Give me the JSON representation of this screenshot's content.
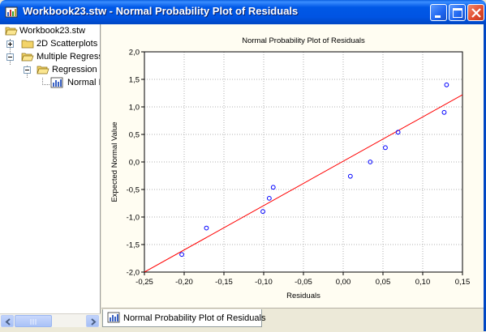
{
  "window": {
    "title": "Workbook23.stw - Normal Probability Plot of Residuals"
  },
  "tree": {
    "root": "Workbook23.stw",
    "items": [
      {
        "label": "2D Scatterplots",
        "expander": "+"
      },
      {
        "label": "Multiple Regress",
        "expander": "-"
      },
      {
        "label": "Regression",
        "expander": "-"
      },
      {
        "label": "Normal I",
        "expander": ""
      }
    ]
  },
  "tab": {
    "label": "Normal Probability Plot of Residuals"
  },
  "colors": {
    "point": "#0000ff",
    "line": "#ff0000",
    "grid": "#b0b0b0"
  },
  "chart_data": {
    "type": "scatter",
    "title": "Normal Probability Plot of Residuals",
    "xlabel": "Residuals",
    "ylabel": "Expected Normal Value",
    "xlim": [
      -0.25,
      0.15
    ],
    "ylim": [
      -2.0,
      2.0
    ],
    "x_ticks": [
      "-0,25",
      "-0,20",
      "-0,15",
      "-0,10",
      "-0,05",
      "0,00",
      "0,05",
      "0,10",
      "0,15"
    ],
    "y_ticks": [
      "-2,0",
      "-1,5",
      "-1,0",
      "-0,5",
      "0,0",
      "0,5",
      "1,0",
      "1,5",
      "2,0"
    ],
    "grid": true,
    "points": [
      {
        "x": -0.203,
        "y": -1.68
      },
      {
        "x": -0.172,
        "y": -1.2
      },
      {
        "x": -0.101,
        "y": -0.9
      },
      {
        "x": -0.093,
        "y": -0.66
      },
      {
        "x": -0.088,
        "y": -0.46
      },
      {
        "x": 0.009,
        "y": -0.26
      },
      {
        "x": 0.034,
        "y": 0.0
      },
      {
        "x": 0.053,
        "y": 0.26
      },
      {
        "x": 0.069,
        "y": 0.54
      },
      {
        "x": 0.127,
        "y": 0.9
      },
      {
        "x": 0.13,
        "y": 1.4
      }
    ],
    "fit_line": [
      {
        "x": -0.25,
        "y": -2.0
      },
      {
        "x": 0.15,
        "y": 1.22
      }
    ]
  }
}
